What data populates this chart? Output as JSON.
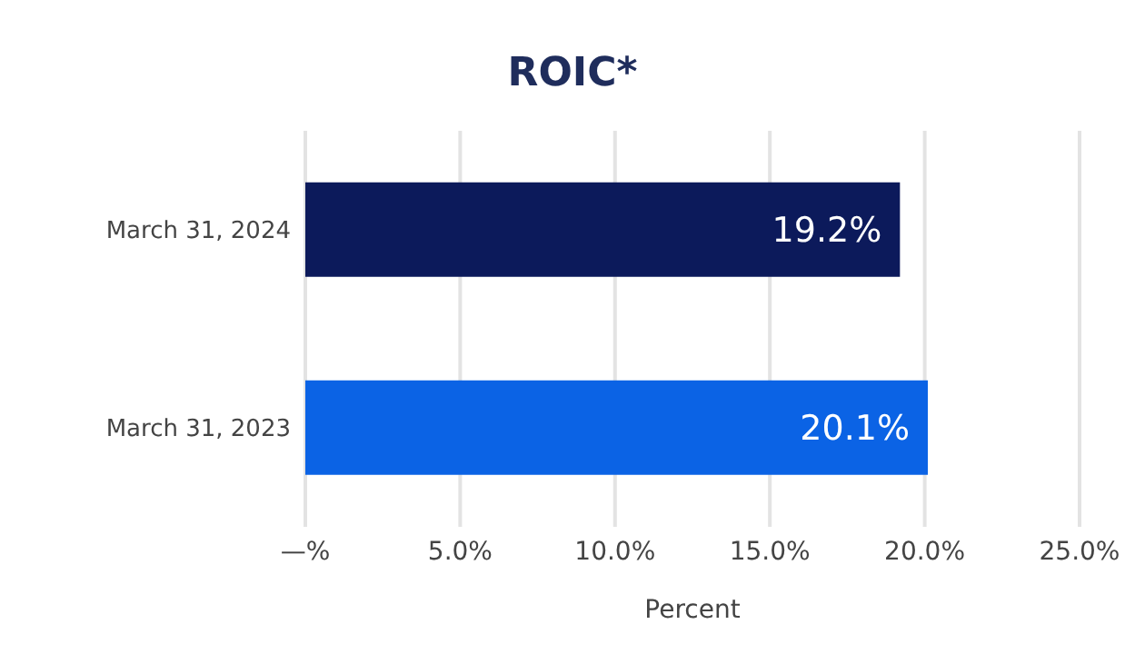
{
  "chart_data": {
    "type": "bar",
    "orientation": "horizontal",
    "title": "ROIC*",
    "xlabel": "Percent",
    "categories": [
      "March 31, 2024",
      "March 31, 2023"
    ],
    "values": [
      19.2,
      20.1
    ],
    "colors": [
      "#0c1a5b",
      "#0b63e5"
    ],
    "value_labels": [
      "19.2%",
      "20.1%"
    ],
    "xlim": [
      0,
      25
    ],
    "xticks": [
      {
        "value": 0,
        "label": "—%"
      },
      {
        "value": 5,
        "label": "5.0%"
      },
      {
        "value": 10,
        "label": "10.0%"
      },
      {
        "value": 15,
        "label": "15.0%"
      },
      {
        "value": 20,
        "label": "20.0%"
      },
      {
        "value": 25,
        "label": "25.0%"
      }
    ],
    "grid": "x"
  }
}
